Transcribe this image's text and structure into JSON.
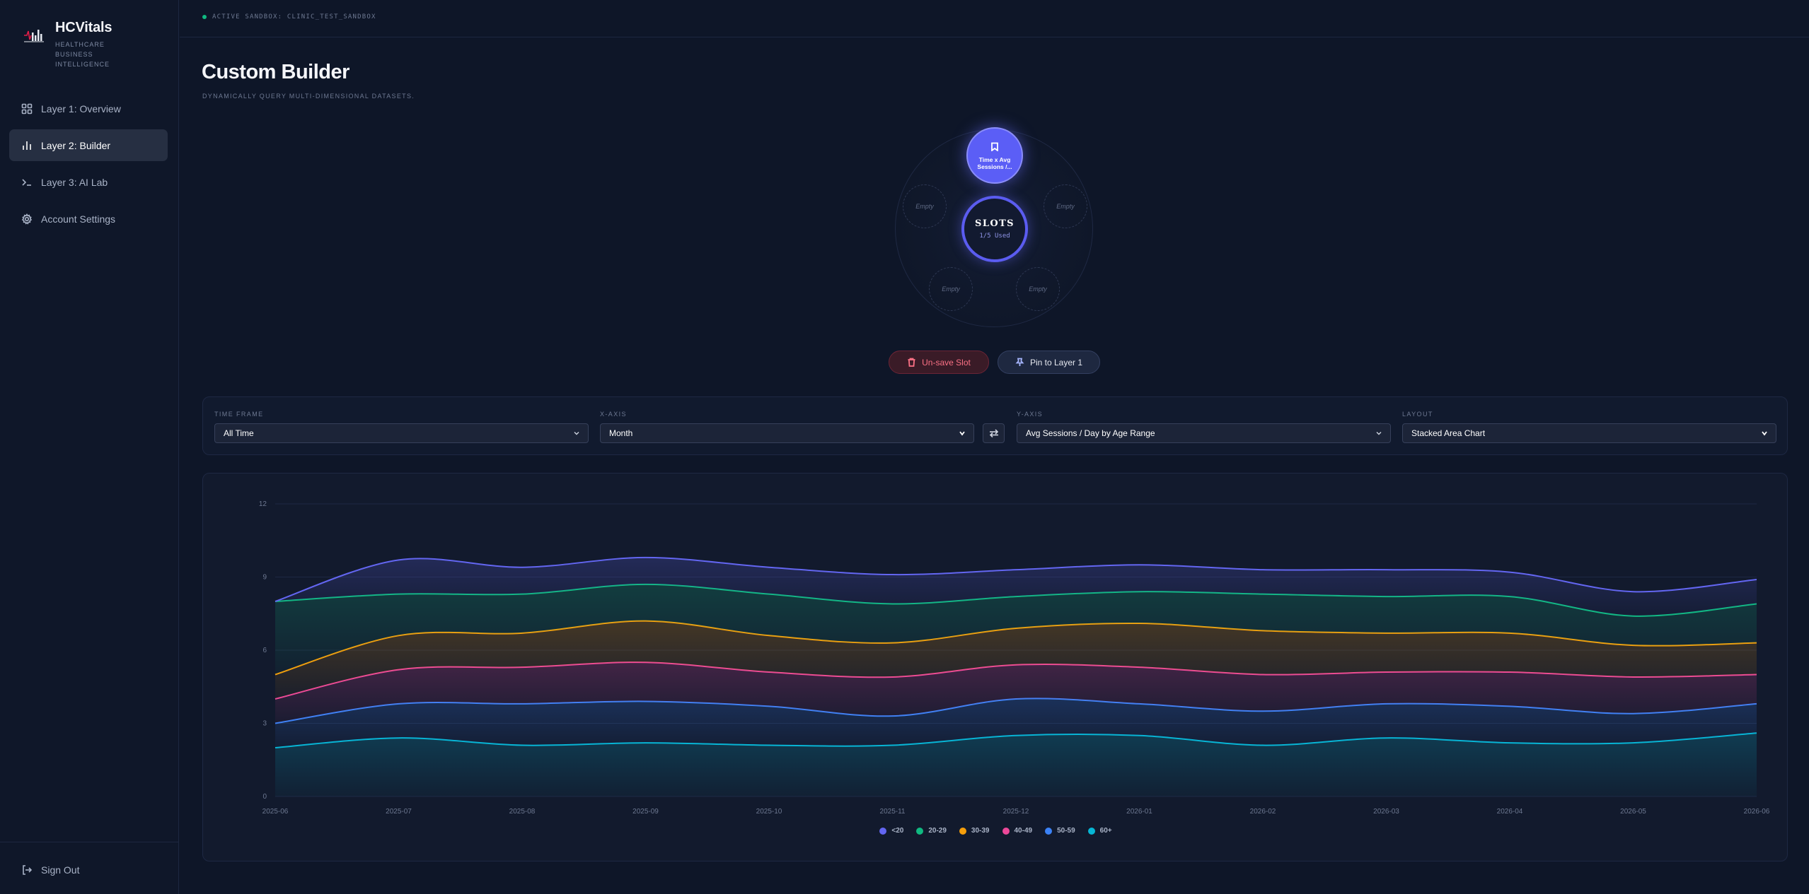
{
  "brand": {
    "name": "HCVitals",
    "subtitle": "HEALTHCARE BUSINESS INTELLIGENCE"
  },
  "nav": [
    {
      "label": "Layer 1: Overview",
      "icon": "grid-icon"
    },
    {
      "label": "Layer 2: Builder",
      "icon": "bar-chart-icon",
      "active": true
    },
    {
      "label": "Layer 3: AI Lab",
      "icon": "terminal-icon"
    },
    {
      "label": "Account Settings",
      "icon": "gear-icon"
    }
  ],
  "sign_out": "Sign Out",
  "sandbox": "ACTIVE SANDBOX: CLINIC_TEST_SANDBOX",
  "page": {
    "title": "Custom Builder",
    "subtitle": "DYNAMICALLY QUERY MULTI-DIMENSIONAL DATASETS."
  },
  "slots": {
    "center_title": "SLOTS",
    "center_usage": "1/5 Used",
    "filled_label_1": "Time x Avg",
    "filled_label_2": "Sessions /...",
    "empty_label": "Empty"
  },
  "actions": {
    "unsave": "Un-save Slot",
    "pin": "Pin to Layer 1"
  },
  "controls": {
    "time_frame": {
      "label": "TIME FRAME",
      "value": "All Time"
    },
    "x_axis": {
      "label": "X-AXIS",
      "value": "Month"
    },
    "y_axis": {
      "label": "Y-AXIS",
      "value": "Avg Sessions / Day by Age Range"
    },
    "layout": {
      "label": "LAYOUT",
      "value": "Stacked Area Chart"
    }
  },
  "colors": {
    "accent": "#6366f1",
    "series": [
      "#6366f1",
      "#10b981",
      "#f59e0b",
      "#ec4899",
      "#3b82f6",
      "#06b6d4"
    ]
  },
  "chart_data": {
    "type": "area",
    "stacked": true,
    "x": [
      "2025-06",
      "2025-07",
      "2025-08",
      "2025-09",
      "2025-10",
      "2025-11",
      "2025-12",
      "2026-01",
      "2026-02",
      "2026-03",
      "2026-04",
      "2026-05",
      "2026-06"
    ],
    "yticks": [
      0,
      3,
      6,
      9,
      12
    ],
    "ylim": [
      0,
      12
    ],
    "grid": true,
    "legend_position": "bottom",
    "series": [
      {
        "name": "60+",
        "values": [
          2.0,
          2.4,
          2.1,
          2.2,
          2.1,
          2.1,
          2.5,
          2.5,
          2.1,
          2.4,
          2.2,
          2.2,
          2.6
        ]
      },
      {
        "name": "50-59",
        "values": [
          1.0,
          1.4,
          1.7,
          1.7,
          1.6,
          1.2,
          1.5,
          1.3,
          1.4,
          1.4,
          1.5,
          1.2,
          1.2
        ]
      },
      {
        "name": "40-49",
        "values": [
          1.0,
          1.4,
          1.5,
          1.6,
          1.4,
          1.6,
          1.4,
          1.5,
          1.5,
          1.3,
          1.4,
          1.5,
          1.2
        ]
      },
      {
        "name": "30-39",
        "values": [
          1.0,
          1.4,
          1.4,
          1.7,
          1.5,
          1.4,
          1.5,
          1.8,
          1.8,
          1.6,
          1.6,
          1.3,
          1.3
        ]
      },
      {
        "name": "20-29",
        "values": [
          3.0,
          1.7,
          1.6,
          1.5,
          1.7,
          1.6,
          1.3,
          1.3,
          1.5,
          1.5,
          1.5,
          1.2,
          1.6
        ]
      },
      {
        "name": "<20",
        "values": [
          0.0,
          1.4,
          1.1,
          1.1,
          1.1,
          1.2,
          1.1,
          1.1,
          1.0,
          1.1,
          1.0,
          1.0,
          1.0
        ]
      }
    ],
    "legend_order": [
      "<20",
      "20-29",
      "30-39",
      "40-49",
      "50-59",
      "60+"
    ]
  }
}
